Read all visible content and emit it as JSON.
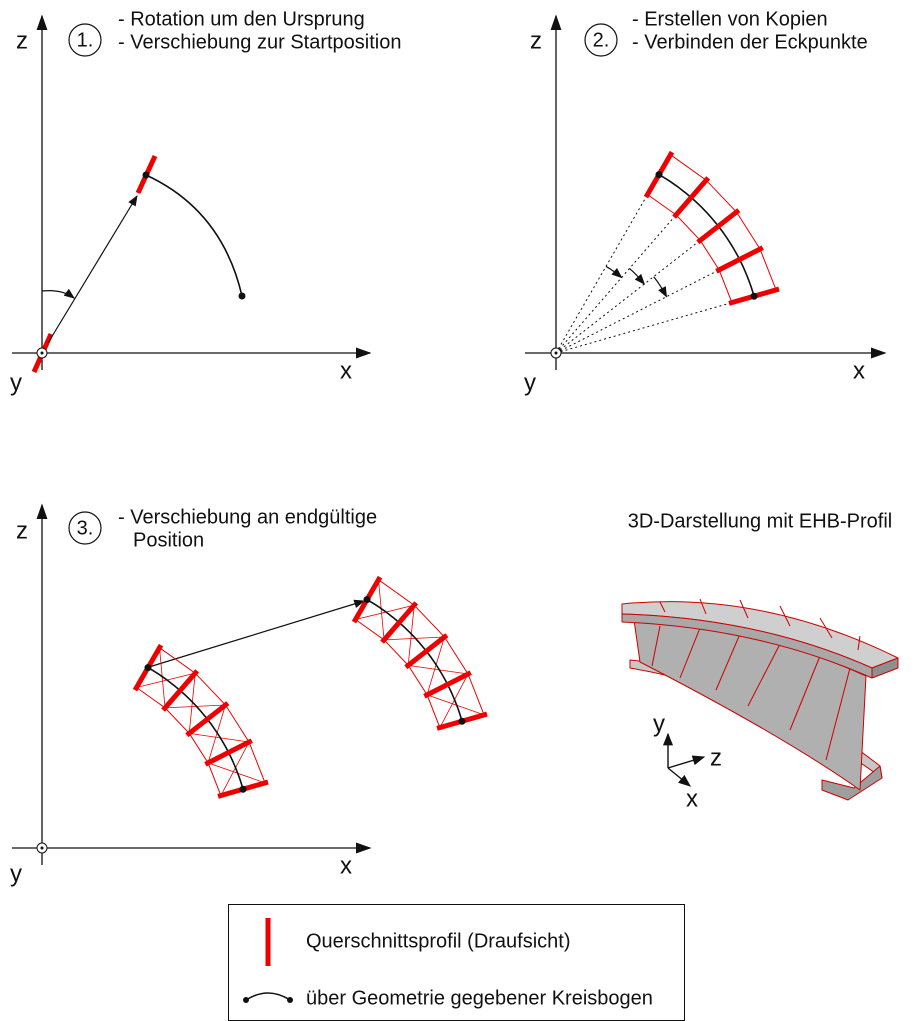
{
  "panels": [
    {
      "step": "1.",
      "lines": [
        "- Rotation um den Ursprung",
        "- Verschiebung zur Startposition"
      ],
      "axes": {
        "z": "z",
        "x": "x",
        "y": "y"
      }
    },
    {
      "step": "2.",
      "lines": [
        "- Erstellen von Kopien",
        "- Verbinden der Eckpunkte"
      ],
      "axes": {
        "z": "z",
        "x": "x",
        "y": "y"
      }
    },
    {
      "step": "3.",
      "lines": [
        "- Verschiebung an endgültige",
        "Position"
      ],
      "axes": {
        "z": "z",
        "x": "x",
        "y": "y"
      }
    }
  ],
  "panel_3d": {
    "title": "3D-Darstellung mit EHB-Profil",
    "axes": {
      "y": "y",
      "z": "z",
      "x": "x"
    }
  },
  "legend": {
    "profile": "Querschnittsprofil (Draufsicht)",
    "arc": "über Geometrie gegebener Kreisbogen"
  }
}
